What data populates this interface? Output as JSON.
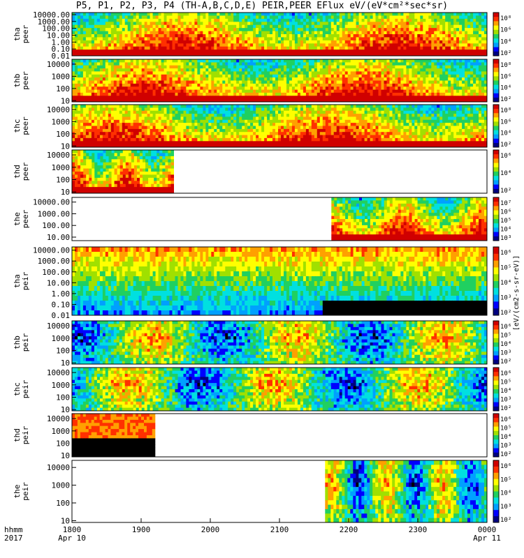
{
  "title": "P5, P1, P2, P3, P4 (TH-A,B,C,D,E) PEIR,PEER EFlux eV/(eV*cm²*sec*sr)",
  "colorbar_unit_label": "[eV/(cm2-s-sr-eV)]",
  "colorbar_colors": [
    "#000080",
    "#0000ff",
    "#00a0ff",
    "#00e0e0",
    "#20d060",
    "#a0e000",
    "#ffff00",
    "#ffa000",
    "#ff3000",
    "#d00000"
  ],
  "x_axis": {
    "label_rows": [
      "hhmm",
      "2017"
    ],
    "ticks": [
      {
        "value": "1800",
        "sub": "Apr 10"
      },
      {
        "value": "1900",
        "sub": ""
      },
      {
        "value": "2000",
        "sub": ""
      },
      {
        "value": "2100",
        "sub": ""
      },
      {
        "value": "2200",
        "sub": ""
      },
      {
        "value": "2300",
        "sub": ""
      },
      {
        "value": "0000",
        "sub": "Apr 11"
      }
    ]
  },
  "chart_data": [
    {
      "type": "heatmap",
      "ylabel": [
        "tha",
        "peer"
      ],
      "yticks": [
        "10000.00",
        "1000.00",
        "100.00",
        "10.00",
        "1.00",
        "0.10",
        "0.01"
      ],
      "ylog": [
        -2,
        4.3
      ],
      "cbar_ticks": [
        "10⁸",
        "10⁶",
        "10⁴",
        "10²"
      ],
      "coverage": [
        0,
        1
      ],
      "mode": "peer",
      "seed": 11
    },
    {
      "type": "heatmap",
      "ylabel": [
        "thb",
        "peer"
      ],
      "yticks": [
        "10000",
        "1000",
        "100",
        "10"
      ],
      "ylog": [
        0.9,
        4.4
      ],
      "cbar_ticks": [
        "10⁸",
        "10⁶",
        "10⁴",
        "10²"
      ],
      "coverage": [
        0,
        1
      ],
      "mode": "peer",
      "seed": 12
    },
    {
      "type": "heatmap",
      "ylabel": [
        "thc",
        "peer"
      ],
      "yticks": [
        "10000",
        "1000",
        "100",
        "10"
      ],
      "ylog": [
        0.9,
        4.4
      ],
      "cbar_ticks": [
        "10⁸",
        "10⁶",
        "10⁴",
        "10²"
      ],
      "coverage": [
        0,
        1
      ],
      "mode": "peer",
      "seed": 13
    },
    {
      "type": "heatmap",
      "ylabel": [
        "thd",
        "peer"
      ],
      "yticks": [
        "10000",
        "1000",
        "100",
        "10"
      ],
      "ylog": [
        0.9,
        4.4
      ],
      "cbar_ticks": [
        "10⁶",
        "10⁴",
        "10²"
      ],
      "coverage": [
        0,
        0.245
      ],
      "mode": "peer",
      "seed": 14
    },
    {
      "type": "heatmap",
      "ylabel": [
        "the",
        "peer"
      ],
      "yticks": [
        "10000.00",
        "1000.00",
        "100.00",
        "10.00"
      ],
      "ylog": [
        0.7,
        4.4
      ],
      "cbar_ticks": [
        "10⁷",
        "10⁶",
        "10⁵",
        "10⁴",
        "10³"
      ],
      "coverage": [
        0.625,
        1
      ],
      "mode": "peer",
      "seed": 15
    },
    {
      "type": "heatmap",
      "ylabel": [
        "tha",
        "peir"
      ],
      "yticks": [
        "10000.00",
        "1000.00",
        "100.00",
        "10.00",
        "1.00",
        "0.10",
        "0.01"
      ],
      "ylog": [
        -2,
        4.3
      ],
      "cbar_ticks": [
        "10⁶",
        "10⁵",
        "10⁴",
        "10³",
        "10²"
      ],
      "coverage": [
        0,
        1
      ],
      "mode": "peir_a",
      "seed": 16
    },
    {
      "type": "heatmap",
      "ylabel": [
        "thb",
        "peir"
      ],
      "yticks": [
        "10000",
        "1000",
        "100",
        "10"
      ],
      "ylog": [
        0.9,
        4.4
      ],
      "cbar_ticks": [
        "10⁶",
        "10⁵",
        "10⁴",
        "10³",
        "10²"
      ],
      "coverage": [
        0,
        1
      ],
      "mode": "peir",
      "seed": 17
    },
    {
      "type": "heatmap",
      "ylabel": [
        "thc",
        "peir"
      ],
      "yticks": [
        "10000",
        "1000",
        "100",
        "10"
      ],
      "ylog": [
        0.9,
        4.4
      ],
      "cbar_ticks": [
        "10⁶",
        "10⁵",
        "10⁴",
        "10³",
        "10²"
      ],
      "coverage": [
        0,
        1
      ],
      "mode": "peir",
      "seed": 18
    },
    {
      "type": "heatmap",
      "ylabel": [
        "thd",
        "peir"
      ],
      "yticks": [
        "10000",
        "1000",
        "100",
        "10"
      ],
      "ylog": [
        0.9,
        4.4
      ],
      "cbar_ticks": [
        "10⁶",
        "10⁵",
        "10⁴",
        "10³",
        "10²"
      ],
      "coverage": [
        0,
        0.2
      ],
      "mode": "peir_d",
      "seed": 19
    },
    {
      "type": "heatmap",
      "ylabel": [
        "the",
        "peir"
      ],
      "yticks": [
        "10000",
        "1000",
        "100",
        "10"
      ],
      "ylog": [
        0.9,
        4.4
      ],
      "cbar_ticks": [
        "10⁶",
        "10⁵",
        "10⁴",
        "10³",
        "10²"
      ],
      "coverage": [
        0.61,
        1
      ],
      "mode": "peir",
      "seed": 20
    }
  ]
}
